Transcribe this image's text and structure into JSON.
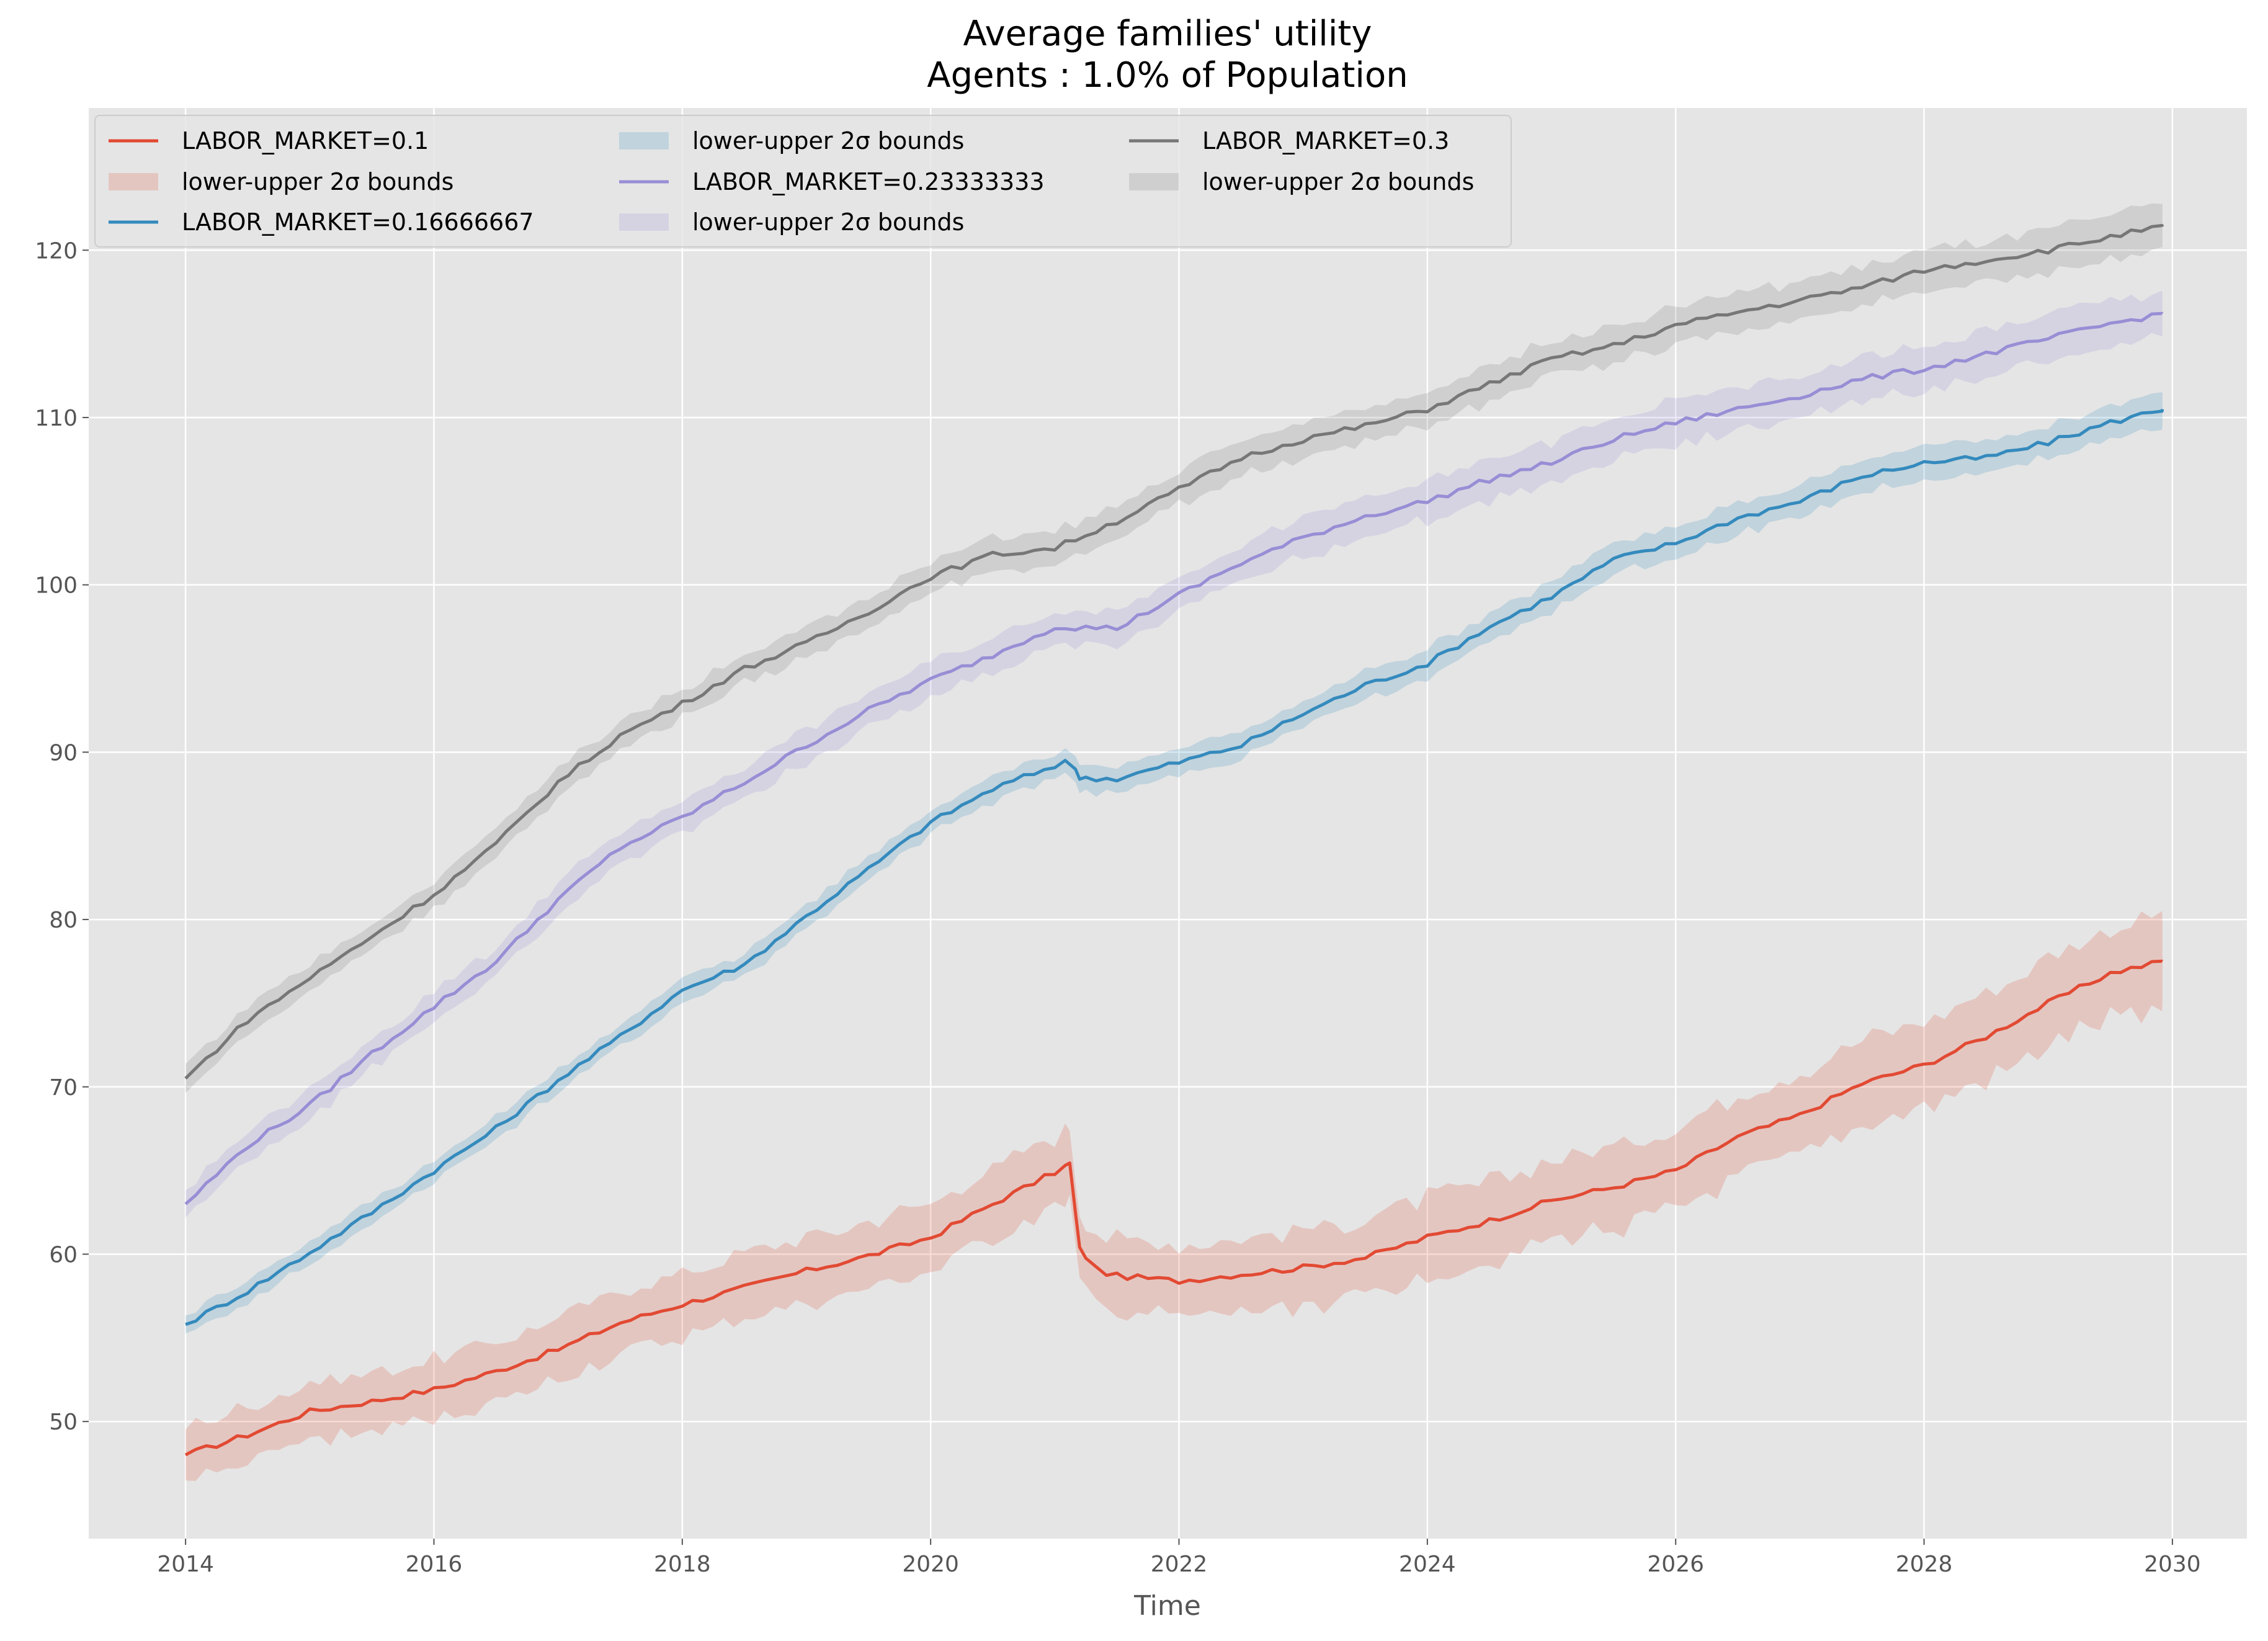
{
  "chart_data": {
    "type": "line",
    "title": "Average families' utility",
    "subtitle": "Agents : 1.0% of Population",
    "xlabel": "Time",
    "ylabel": "",
    "xlim": [
      2013.22,
      2030.6
    ],
    "ylim": [
      43.0,
      128.5
    ],
    "xticks": [
      "2014",
      "2016",
      "2018",
      "2020",
      "2022",
      "2024",
      "2026",
      "2028",
      "2030"
    ],
    "yticks": [
      "50",
      "60",
      "70",
      "80",
      "90",
      "100",
      "110",
      "120"
    ],
    "grid": true,
    "legend_position": "top-left",
    "legend_columns": 3,
    "band_label": "lower-upper 2σ bounds",
    "series": [
      {
        "name": "LABOR_MARKET=0.1",
        "color": "#E24A33",
        "band_half_width": 2.2,
        "points": [
          [
            2014.0,
            48.0
          ],
          [
            2014.5,
            49.2
          ],
          [
            2015.0,
            50.6
          ],
          [
            2015.5,
            51.2
          ],
          [
            2016.0,
            51.9
          ],
          [
            2016.5,
            53.0
          ],
          [
            2017.0,
            54.3
          ],
          [
            2017.5,
            55.9
          ],
          [
            2018.0,
            57.0
          ],
          [
            2018.5,
            58.0
          ],
          [
            2019.0,
            59.0
          ],
          [
            2019.5,
            59.9
          ],
          [
            2020.0,
            61.0
          ],
          [
            2020.5,
            63.0
          ],
          [
            2021.0,
            64.9
          ],
          [
            2021.12,
            65.4
          ],
          [
            2021.2,
            60.3
          ],
          [
            2021.35,
            59.0
          ],
          [
            2021.5,
            58.7
          ],
          [
            2022.0,
            58.4
          ],
          [
            2022.5,
            58.8
          ],
          [
            2023.0,
            59.2
          ],
          [
            2023.5,
            59.8
          ],
          [
            2024.0,
            61.0
          ],
          [
            2024.5,
            62.0
          ],
          [
            2025.0,
            63.2
          ],
          [
            2025.5,
            64.0
          ],
          [
            2026.0,
            65.0
          ],
          [
            2026.5,
            67.0
          ],
          [
            2027.0,
            68.3
          ],
          [
            2027.5,
            70.2
          ],
          [
            2028.0,
            71.3
          ],
          [
            2028.5,
            73.0
          ],
          [
            2029.0,
            75.0
          ],
          [
            2029.5,
            76.8
          ],
          [
            2029.92,
            77.5
          ]
        ]
      },
      {
        "name": "LABOR_MARKET=0.16666667",
        "color": "#348ABD",
        "band_half_width": 0.8,
        "points": [
          [
            2014.0,
            55.8
          ],
          [
            2014.5,
            57.8
          ],
          [
            2015.0,
            60.1
          ],
          [
            2015.5,
            62.5
          ],
          [
            2016.0,
            65.0
          ],
          [
            2016.5,
            67.5
          ],
          [
            2017.0,
            70.4
          ],
          [
            2017.5,
            73.0
          ],
          [
            2018.0,
            75.8
          ],
          [
            2018.5,
            77.3
          ],
          [
            2019.0,
            80.2
          ],
          [
            2019.5,
            83.0
          ],
          [
            2020.0,
            85.8
          ],
          [
            2020.5,
            87.8
          ],
          [
            2021.0,
            89.2
          ],
          [
            2021.1,
            89.6
          ],
          [
            2021.2,
            88.5
          ],
          [
            2021.5,
            88.4
          ],
          [
            2022.0,
            89.4
          ],
          [
            2022.5,
            90.4
          ],
          [
            2023.0,
            92.3
          ],
          [
            2023.5,
            94.0
          ],
          [
            2024.0,
            95.3
          ],
          [
            2024.5,
            97.5
          ],
          [
            2025.0,
            99.3
          ],
          [
            2025.5,
            101.5
          ],
          [
            2026.0,
            102.5
          ],
          [
            2026.5,
            104.0
          ],
          [
            2027.0,
            105.0
          ],
          [
            2027.5,
            106.5
          ],
          [
            2028.0,
            107.3
          ],
          [
            2028.5,
            107.6
          ],
          [
            2029.0,
            108.5
          ],
          [
            2029.5,
            109.7
          ],
          [
            2029.92,
            110.5
          ]
        ]
      },
      {
        "name": "LABOR_MARKET=0.23333333",
        "color": "#988ED5",
        "band_half_width": 1.1,
        "points": [
          [
            2014.0,
            63.0
          ],
          [
            2014.5,
            66.5
          ],
          [
            2015.0,
            68.9
          ],
          [
            2015.5,
            72.0
          ],
          [
            2016.0,
            74.8
          ],
          [
            2016.5,
            77.5
          ],
          [
            2017.0,
            81.2
          ],
          [
            2017.5,
            84.3
          ],
          [
            2018.0,
            86.1
          ],
          [
            2018.5,
            88.2
          ],
          [
            2019.0,
            90.4
          ],
          [
            2019.5,
            92.5
          ],
          [
            2020.0,
            94.3
          ],
          [
            2020.5,
            95.8
          ],
          [
            2021.0,
            97.5
          ],
          [
            2021.5,
            97.4
          ],
          [
            2022.0,
            99.4
          ],
          [
            2022.5,
            101.3
          ],
          [
            2023.0,
            102.8
          ],
          [
            2023.5,
            104.1
          ],
          [
            2024.0,
            105.0
          ],
          [
            2024.5,
            106.3
          ],
          [
            2025.0,
            107.3
          ],
          [
            2025.5,
            108.7
          ],
          [
            2026.0,
            109.7
          ],
          [
            2026.5,
            110.5
          ],
          [
            2027.0,
            111.3
          ],
          [
            2027.5,
            112.3
          ],
          [
            2028.0,
            112.9
          ],
          [
            2028.5,
            113.8
          ],
          [
            2029.0,
            114.7
          ],
          [
            2029.5,
            115.6
          ],
          [
            2029.92,
            116.2
          ]
        ]
      },
      {
        "name": "LABOR_MARKET=0.3",
        "color": "#777777",
        "band_half_width": 1.0,
        "points": [
          [
            2014.0,
            70.5
          ],
          [
            2014.5,
            74.0
          ],
          [
            2015.0,
            76.5
          ],
          [
            2015.5,
            79.0
          ],
          [
            2016.0,
            81.5
          ],
          [
            2016.5,
            84.5
          ],
          [
            2017.0,
            88.2
          ],
          [
            2017.5,
            91.0
          ],
          [
            2018.0,
            92.9
          ],
          [
            2018.5,
            95.0
          ],
          [
            2019.0,
            96.5
          ],
          [
            2019.5,
            98.4
          ],
          [
            2020.0,
            100.5
          ],
          [
            2020.5,
            101.8
          ],
          [
            2021.0,
            102.2
          ],
          [
            2021.5,
            103.8
          ],
          [
            2022.0,
            105.7
          ],
          [
            2022.5,
            107.6
          ],
          [
            2023.0,
            108.7
          ],
          [
            2023.5,
            109.5
          ],
          [
            2024.0,
            110.5
          ],
          [
            2024.5,
            112.0
          ],
          [
            2025.0,
            113.5
          ],
          [
            2025.5,
            114.3
          ],
          [
            2026.0,
            115.5
          ],
          [
            2026.5,
            116.3
          ],
          [
            2027.0,
            117.0
          ],
          [
            2027.5,
            117.8
          ],
          [
            2028.0,
            118.8
          ],
          [
            2028.5,
            119.4
          ],
          [
            2029.0,
            120.0
          ],
          [
            2029.5,
            120.8
          ],
          [
            2029.92,
            121.4
          ]
        ]
      }
    ]
  }
}
